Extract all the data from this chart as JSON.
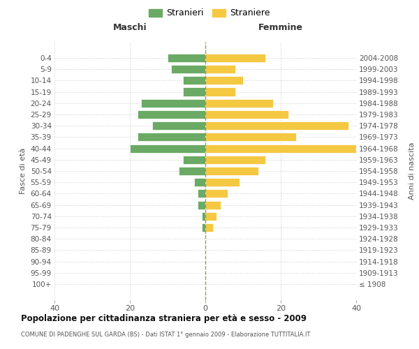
{
  "age_groups": [
    "100+",
    "95-99",
    "90-94",
    "85-89",
    "80-84",
    "75-79",
    "70-74",
    "65-69",
    "60-64",
    "55-59",
    "50-54",
    "45-49",
    "40-44",
    "35-39",
    "30-34",
    "25-29",
    "20-24",
    "15-19",
    "10-14",
    "5-9",
    "0-4"
  ],
  "birth_years": [
    "≤ 1908",
    "1909-1913",
    "1914-1918",
    "1919-1923",
    "1924-1928",
    "1929-1933",
    "1934-1938",
    "1939-1943",
    "1944-1948",
    "1949-1953",
    "1954-1958",
    "1959-1963",
    "1964-1968",
    "1969-1973",
    "1974-1978",
    "1979-1983",
    "1984-1988",
    "1989-1993",
    "1994-1998",
    "1999-2003",
    "2004-2008"
  ],
  "maschi": [
    0,
    0,
    0,
    0,
    0,
    1,
    1,
    2,
    2,
    3,
    7,
    6,
    20,
    18,
    14,
    18,
    17,
    6,
    6,
    9,
    10
  ],
  "femmine": [
    0,
    0,
    0,
    0,
    0,
    2,
    3,
    4,
    6,
    9,
    14,
    16,
    40,
    24,
    38,
    22,
    18,
    8,
    10,
    8,
    16
  ],
  "color_maschi": "#6aaa64",
  "color_femmine": "#f5c842",
  "background_color": "#ffffff",
  "grid_color": "#cccccc",
  "title": "Popolazione per cittadinanza straniera per età e sesso - 2009",
  "subtitle": "COMUNE DI PADENGHE SUL GARDA (BS) - Dati ISTAT 1° gennaio 2009 - Elaborazione TUTTITALIA.IT",
  "xlabel_left": "Maschi",
  "xlabel_right": "Femmine",
  "ylabel_left": "Fasce di età",
  "ylabel_right": "Anni di nascita",
  "legend_maschi": "Stranieri",
  "legend_femmine": "Straniere",
  "xlim": 40
}
